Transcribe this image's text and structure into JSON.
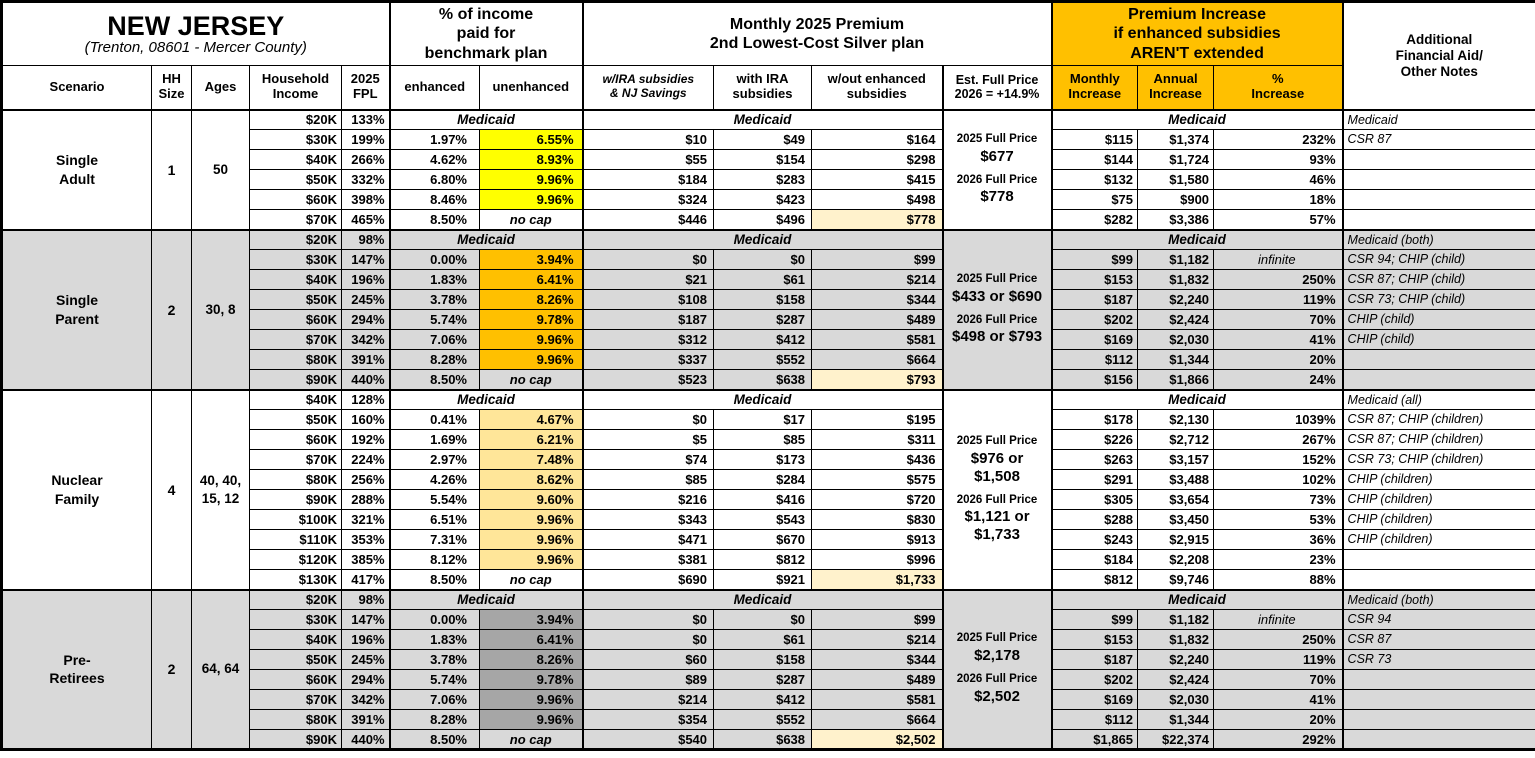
{
  "labels": {
    "medicaid": "Medicaid",
    "no_cap": "no cap"
  },
  "colors": {
    "header_accent": "#FFC000",
    "band_gray": "#D9D9D9",
    "highlight_full_price_row": "#FFF2CC",
    "single_adult_unenhanced": "#FFFF00",
    "single_parent_unenhanced": "#FFC000",
    "nuclear_family_unenhanced": "#FFE699",
    "pre_retirees_unenhanced": "#A6A6A6"
  },
  "header": {
    "region": "NEW JERSEY",
    "region_sub": "(Trenton, 08601 - Mercer County)",
    "income_group": "% of income\npaid for\nbenchmark plan",
    "premium_group": "Monthly 2025 Premium\n2nd Lowest-Cost Silver plan",
    "increase_group": "Premium Increase\nif enhanced subsidies\nAREN'T extended",
    "notes_group": "Additional\nFinancial Aid/\nOther Notes",
    "cols": {
      "scenario": "Scenario",
      "hh": "HH\nSize",
      "ages": "Ages",
      "income": "Household\nIncome",
      "fpl": "2025\nFPL",
      "enhanced": "enhanced",
      "unenhanced": "unenhanced",
      "p1": "w/IRA subsidies\n& NJ Savings",
      "p2": "with IRA\nsubsidies",
      "p3": "w/out enhanced\nsubsidies",
      "full": "Est. Full Price\n2026 = +14.9%",
      "monthly": "Monthly\nIncrease",
      "annual": "Annual\nIncrease",
      "pct": "%\nIncrease"
    }
  },
  "scenarios": [
    {
      "name": "Single\nAdult",
      "hh": "1",
      "ages": "50",
      "band": "white",
      "unenhanced_color": "#FFFF00",
      "full_price": {
        "label25": "2025 Full Price",
        "value25": "$677",
        "label26": "2026 Full Price",
        "value26": "$778"
      },
      "rows": [
        {
          "income": "$20K",
          "fpl": "133%",
          "medicaid": true,
          "note": "Medicaid"
        },
        {
          "income": "$30K",
          "fpl": "199%",
          "enh": "1.97%",
          "unenh": "6.55%",
          "p1": "$10",
          "p2": "$49",
          "p3": "$164",
          "mo": "$115",
          "an": "$1,374",
          "pct": "232%",
          "note": "CSR 87"
        },
        {
          "income": "$40K",
          "fpl": "266%",
          "enh": "4.62%",
          "unenh": "8.93%",
          "p1": "$55",
          "p2": "$154",
          "p3": "$298",
          "mo": "$144",
          "an": "$1,724",
          "pct": "93%",
          "note": ""
        },
        {
          "income": "$50K",
          "fpl": "332%",
          "enh": "6.80%",
          "unenh": "9.96%",
          "p1": "$184",
          "p2": "$283",
          "p3": "$415",
          "mo": "$132",
          "an": "$1,580",
          "pct": "46%",
          "note": ""
        },
        {
          "income": "$60K",
          "fpl": "398%",
          "enh": "8.46%",
          "unenh": "9.96%",
          "p1": "$324",
          "p2": "$423",
          "p3": "$498",
          "mo": "$75",
          "an": "$900",
          "pct": "18%",
          "note": ""
        },
        {
          "income": "$70K",
          "fpl": "465%",
          "enh": "8.50%",
          "unenh": "no cap",
          "nocap": true,
          "p1": "$446",
          "p2": "$496",
          "p3": "$778",
          "hl": true,
          "mo": "$282",
          "an": "$3,386",
          "pct": "57%",
          "note": ""
        }
      ]
    },
    {
      "name": "Single\nParent",
      "hh": "2",
      "ages": "30, 8",
      "band": "gray",
      "unenhanced_color": "#FFC000",
      "full_price": {
        "label25": "2025 Full Price",
        "value25": "$433 or $690",
        "label26": "2026 Full Price",
        "value26": "$498 or $793"
      },
      "rows": [
        {
          "income": "$20K",
          "fpl": "98%",
          "medicaid": true,
          "note": "Medicaid (both)"
        },
        {
          "income": "$30K",
          "fpl": "147%",
          "enh": "0.00%",
          "unenh": "3.94%",
          "p1": "$0",
          "p2": "$0",
          "p3": "$99",
          "mo": "$99",
          "an": "$1,182",
          "pct": "infinite",
          "note": "CSR 94; CHIP (child)"
        },
        {
          "income": "$40K",
          "fpl": "196%",
          "enh": "1.83%",
          "unenh": "6.41%",
          "p1": "$21",
          "p2": "$61",
          "p3": "$214",
          "mo": "$153",
          "an": "$1,832",
          "pct": "250%",
          "note": "CSR 87; CHIP (child)"
        },
        {
          "income": "$50K",
          "fpl": "245%",
          "enh": "3.78%",
          "unenh": "8.26%",
          "p1": "$108",
          "p2": "$158",
          "p3": "$344",
          "mo": "$187",
          "an": "$2,240",
          "pct": "119%",
          "note": "CSR 73; CHIP (child)"
        },
        {
          "income": "$60K",
          "fpl": "294%",
          "enh": "5.74%",
          "unenh": "9.78%",
          "p1": "$187",
          "p2": "$287",
          "p3": "$489",
          "mo": "$202",
          "an": "$2,424",
          "pct": "70%",
          "note": "CHIP (child)"
        },
        {
          "income": "$70K",
          "fpl": "342%",
          "enh": "7.06%",
          "unenh": "9.96%",
          "p1": "$312",
          "p2": "$412",
          "p3": "$581",
          "mo": "$169",
          "an": "$2,030",
          "pct": "41%",
          "note": "CHIP (child)"
        },
        {
          "income": "$80K",
          "fpl": "391%",
          "enh": "8.28%",
          "unenh": "9.96%",
          "p1": "$337",
          "p2": "$552",
          "p3": "$664",
          "mo": "$112",
          "an": "$1,344",
          "pct": "20%",
          "note": ""
        },
        {
          "income": "$90K",
          "fpl": "440%",
          "enh": "8.50%",
          "unenh": "no cap",
          "nocap": true,
          "p1": "$523",
          "p2": "$638",
          "p3": "$793",
          "hl": true,
          "mo": "$156",
          "an": "$1,866",
          "pct": "24%",
          "note": ""
        }
      ]
    },
    {
      "name": "Nuclear\nFamily",
      "hh": "4",
      "ages": "40, 40,\n15, 12",
      "band": "white",
      "unenhanced_color": "#FFE699",
      "full_price": {
        "label25": "2025 Full Price",
        "value25": "$976 or\n$1,508",
        "label26": "2026 Full Price",
        "value26": "$1,121 or\n$1,733"
      },
      "rows": [
        {
          "income": "$40K",
          "fpl": "128%",
          "medicaid": true,
          "note": "Medicaid (all)"
        },
        {
          "income": "$50K",
          "fpl": "160%",
          "enh": "0.41%",
          "unenh": "4.67%",
          "p1": "$0",
          "p2": "$17",
          "p3": "$195",
          "mo": "$178",
          "an": "$2,130",
          "pct": "1039%",
          "note": "CSR 87; CHIP (children)"
        },
        {
          "income": "$60K",
          "fpl": "192%",
          "enh": "1.69%",
          "unenh": "6.21%",
          "p1": "$5",
          "p2": "$85",
          "p3": "$311",
          "mo": "$226",
          "an": "$2,712",
          "pct": "267%",
          "note": "CSR 87; CHIP (children)"
        },
        {
          "income": "$70K",
          "fpl": "224%",
          "enh": "2.97%",
          "unenh": "7.48%",
          "p1": "$74",
          "p2": "$173",
          "p3": "$436",
          "mo": "$263",
          "an": "$3,157",
          "pct": "152%",
          "note": "CSR 73; CHIP (children)"
        },
        {
          "income": "$80K",
          "fpl": "256%",
          "enh": "4.26%",
          "unenh": "8.62%",
          "p1": "$85",
          "p2": "$284",
          "p3": "$575",
          "mo": "$291",
          "an": "$3,488",
          "pct": "102%",
          "note": "CHIP (children)"
        },
        {
          "income": "$90K",
          "fpl": "288%",
          "enh": "5.54%",
          "unenh": "9.60%",
          "p1": "$216",
          "p2": "$416",
          "p3": "$720",
          "mo": "$305",
          "an": "$3,654",
          "pct": "73%",
          "note": "CHIP (children)"
        },
        {
          "income": "$100K",
          "fpl": "321%",
          "enh": "6.51%",
          "unenh": "9.96%",
          "p1": "$343",
          "p2": "$543",
          "p3": "$830",
          "mo": "$288",
          "an": "$3,450",
          "pct": "53%",
          "note": "CHIP (children)"
        },
        {
          "income": "$110K",
          "fpl": "353%",
          "enh": "7.31%",
          "unenh": "9.96%",
          "p1": "$471",
          "p2": "$670",
          "p3": "$913",
          "mo": "$243",
          "an": "$2,915",
          "pct": "36%",
          "note": "CHIP (children)"
        },
        {
          "income": "$120K",
          "fpl": "385%",
          "enh": "8.12%",
          "unenh": "9.96%",
          "p1": "$381",
          "p2": "$812",
          "p3": "$996",
          "mo": "$184",
          "an": "$2,208",
          "pct": "23%",
          "note": ""
        },
        {
          "income": "$130K",
          "fpl": "417%",
          "enh": "8.50%",
          "unenh": "no cap",
          "nocap": true,
          "p1": "$690",
          "p2": "$921",
          "p3": "$1,733",
          "hl": true,
          "mo": "$812",
          "an": "$9,746",
          "pct": "88%",
          "note": ""
        }
      ]
    },
    {
      "name": "Pre-\nRetirees",
      "hh": "2",
      "ages": "64, 64",
      "band": "gray",
      "unenhanced_color": "#A6A6A6",
      "full_price": {
        "label25": "2025 Full Price",
        "value25": "$2,178",
        "label26": "2026 Full Price",
        "value26": "$2,502"
      },
      "rows": [
        {
          "income": "$20K",
          "fpl": "98%",
          "medicaid": true,
          "note": "Medicaid (both)"
        },
        {
          "income": "$30K",
          "fpl": "147%",
          "enh": "0.00%",
          "unenh": "3.94%",
          "p1": "$0",
          "p2": "$0",
          "p3": "$99",
          "mo": "$99",
          "an": "$1,182",
          "pct": "infinite",
          "note": "CSR 94"
        },
        {
          "income": "$40K",
          "fpl": "196%",
          "enh": "1.83%",
          "unenh": "6.41%",
          "p1": "$0",
          "p2": "$61",
          "p3": "$214",
          "mo": "$153",
          "an": "$1,832",
          "pct": "250%",
          "note": "CSR 87"
        },
        {
          "income": "$50K",
          "fpl": "245%",
          "enh": "3.78%",
          "unenh": "8.26%",
          "p1": "$60",
          "p2": "$158",
          "p3": "$344",
          "mo": "$187",
          "an": "$2,240",
          "pct": "119%",
          "note": "CSR 73"
        },
        {
          "income": "$60K",
          "fpl": "294%",
          "enh": "5.74%",
          "unenh": "9.78%",
          "p1": "$89",
          "p2": "$287",
          "p3": "$489",
          "mo": "$202",
          "an": "$2,424",
          "pct": "70%",
          "note": ""
        },
        {
          "income": "$70K",
          "fpl": "342%",
          "enh": "7.06%",
          "unenh": "9.96%",
          "p1": "$214",
          "p2": "$412",
          "p3": "$581",
          "mo": "$169",
          "an": "$2,030",
          "pct": "41%",
          "note": ""
        },
        {
          "income": "$80K",
          "fpl": "391%",
          "enh": "8.28%",
          "unenh": "9.96%",
          "p1": "$354",
          "p2": "$552",
          "p3": "$664",
          "mo": "$112",
          "an": "$1,344",
          "pct": "20%",
          "note": ""
        },
        {
          "income": "$90K",
          "fpl": "440%",
          "enh": "8.50%",
          "unenh": "no cap",
          "nocap": true,
          "p1": "$540",
          "p2": "$638",
          "p3": "$2,502",
          "hl": true,
          "mo": "$1,865",
          "an": "$22,374",
          "pct": "292%",
          "note": ""
        }
      ]
    }
  ]
}
